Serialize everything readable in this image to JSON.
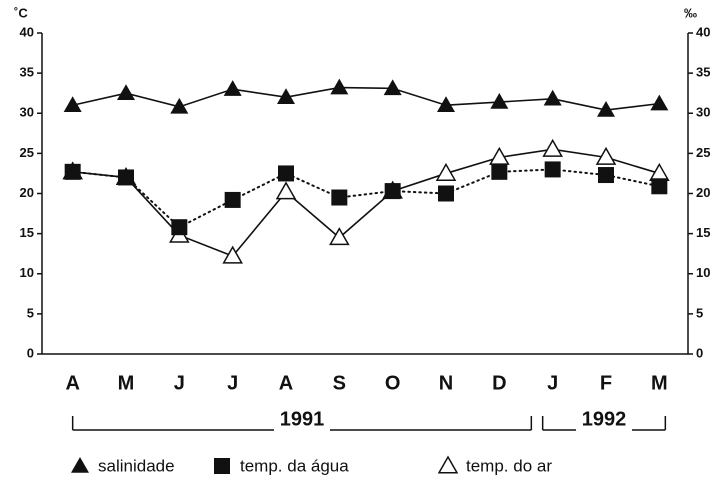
{
  "chart_data": {
    "type": "line",
    "y_label": "˚C",
    "y2_label": "‰",
    "categories": [
      "A",
      "M",
      "J",
      "J",
      "A",
      "S",
      "O",
      "N",
      "D",
      "J",
      "F",
      "M"
    ],
    "periods": [
      {
        "label": "1991",
        "span": 9
      },
      {
        "label": "1992",
        "span": 3
      }
    ],
    "ylim": [
      0,
      40
    ],
    "yticks": [
      0,
      5,
      10,
      15,
      20,
      25,
      30,
      35,
      40
    ],
    "y2lim": [
      0,
      40
    ],
    "y2ticks": [
      0,
      5,
      10,
      15,
      20,
      25,
      30,
      35,
      40
    ],
    "series": [
      {
        "name": "salinidade",
        "color": "#111111",
        "marker": "triangle",
        "line": "solid",
        "axis": "y2",
        "values": [
          31,
          32.5,
          30.8,
          33,
          32,
          33.2,
          33.1,
          31,
          31.4,
          31.8,
          30.4,
          31.2
        ]
      },
      {
        "name": "temp. da água",
        "color": "#111111",
        "marker": "square",
        "line": "dotted",
        "values": [
          22.7,
          22,
          15.8,
          19.2,
          22.5,
          19.5,
          20.3,
          20,
          22.7,
          23,
          22.3,
          20.9
        ]
      },
      {
        "name": "temp. do ar",
        "color": "#111111",
        "marker": "open-triangle",
        "line": "solid",
        "values": [
          22.7,
          22,
          14.8,
          12.2,
          20.2,
          14.5,
          20.3,
          22.5,
          24.5,
          25.5,
          24.5,
          22.5
        ]
      }
    ]
  }
}
